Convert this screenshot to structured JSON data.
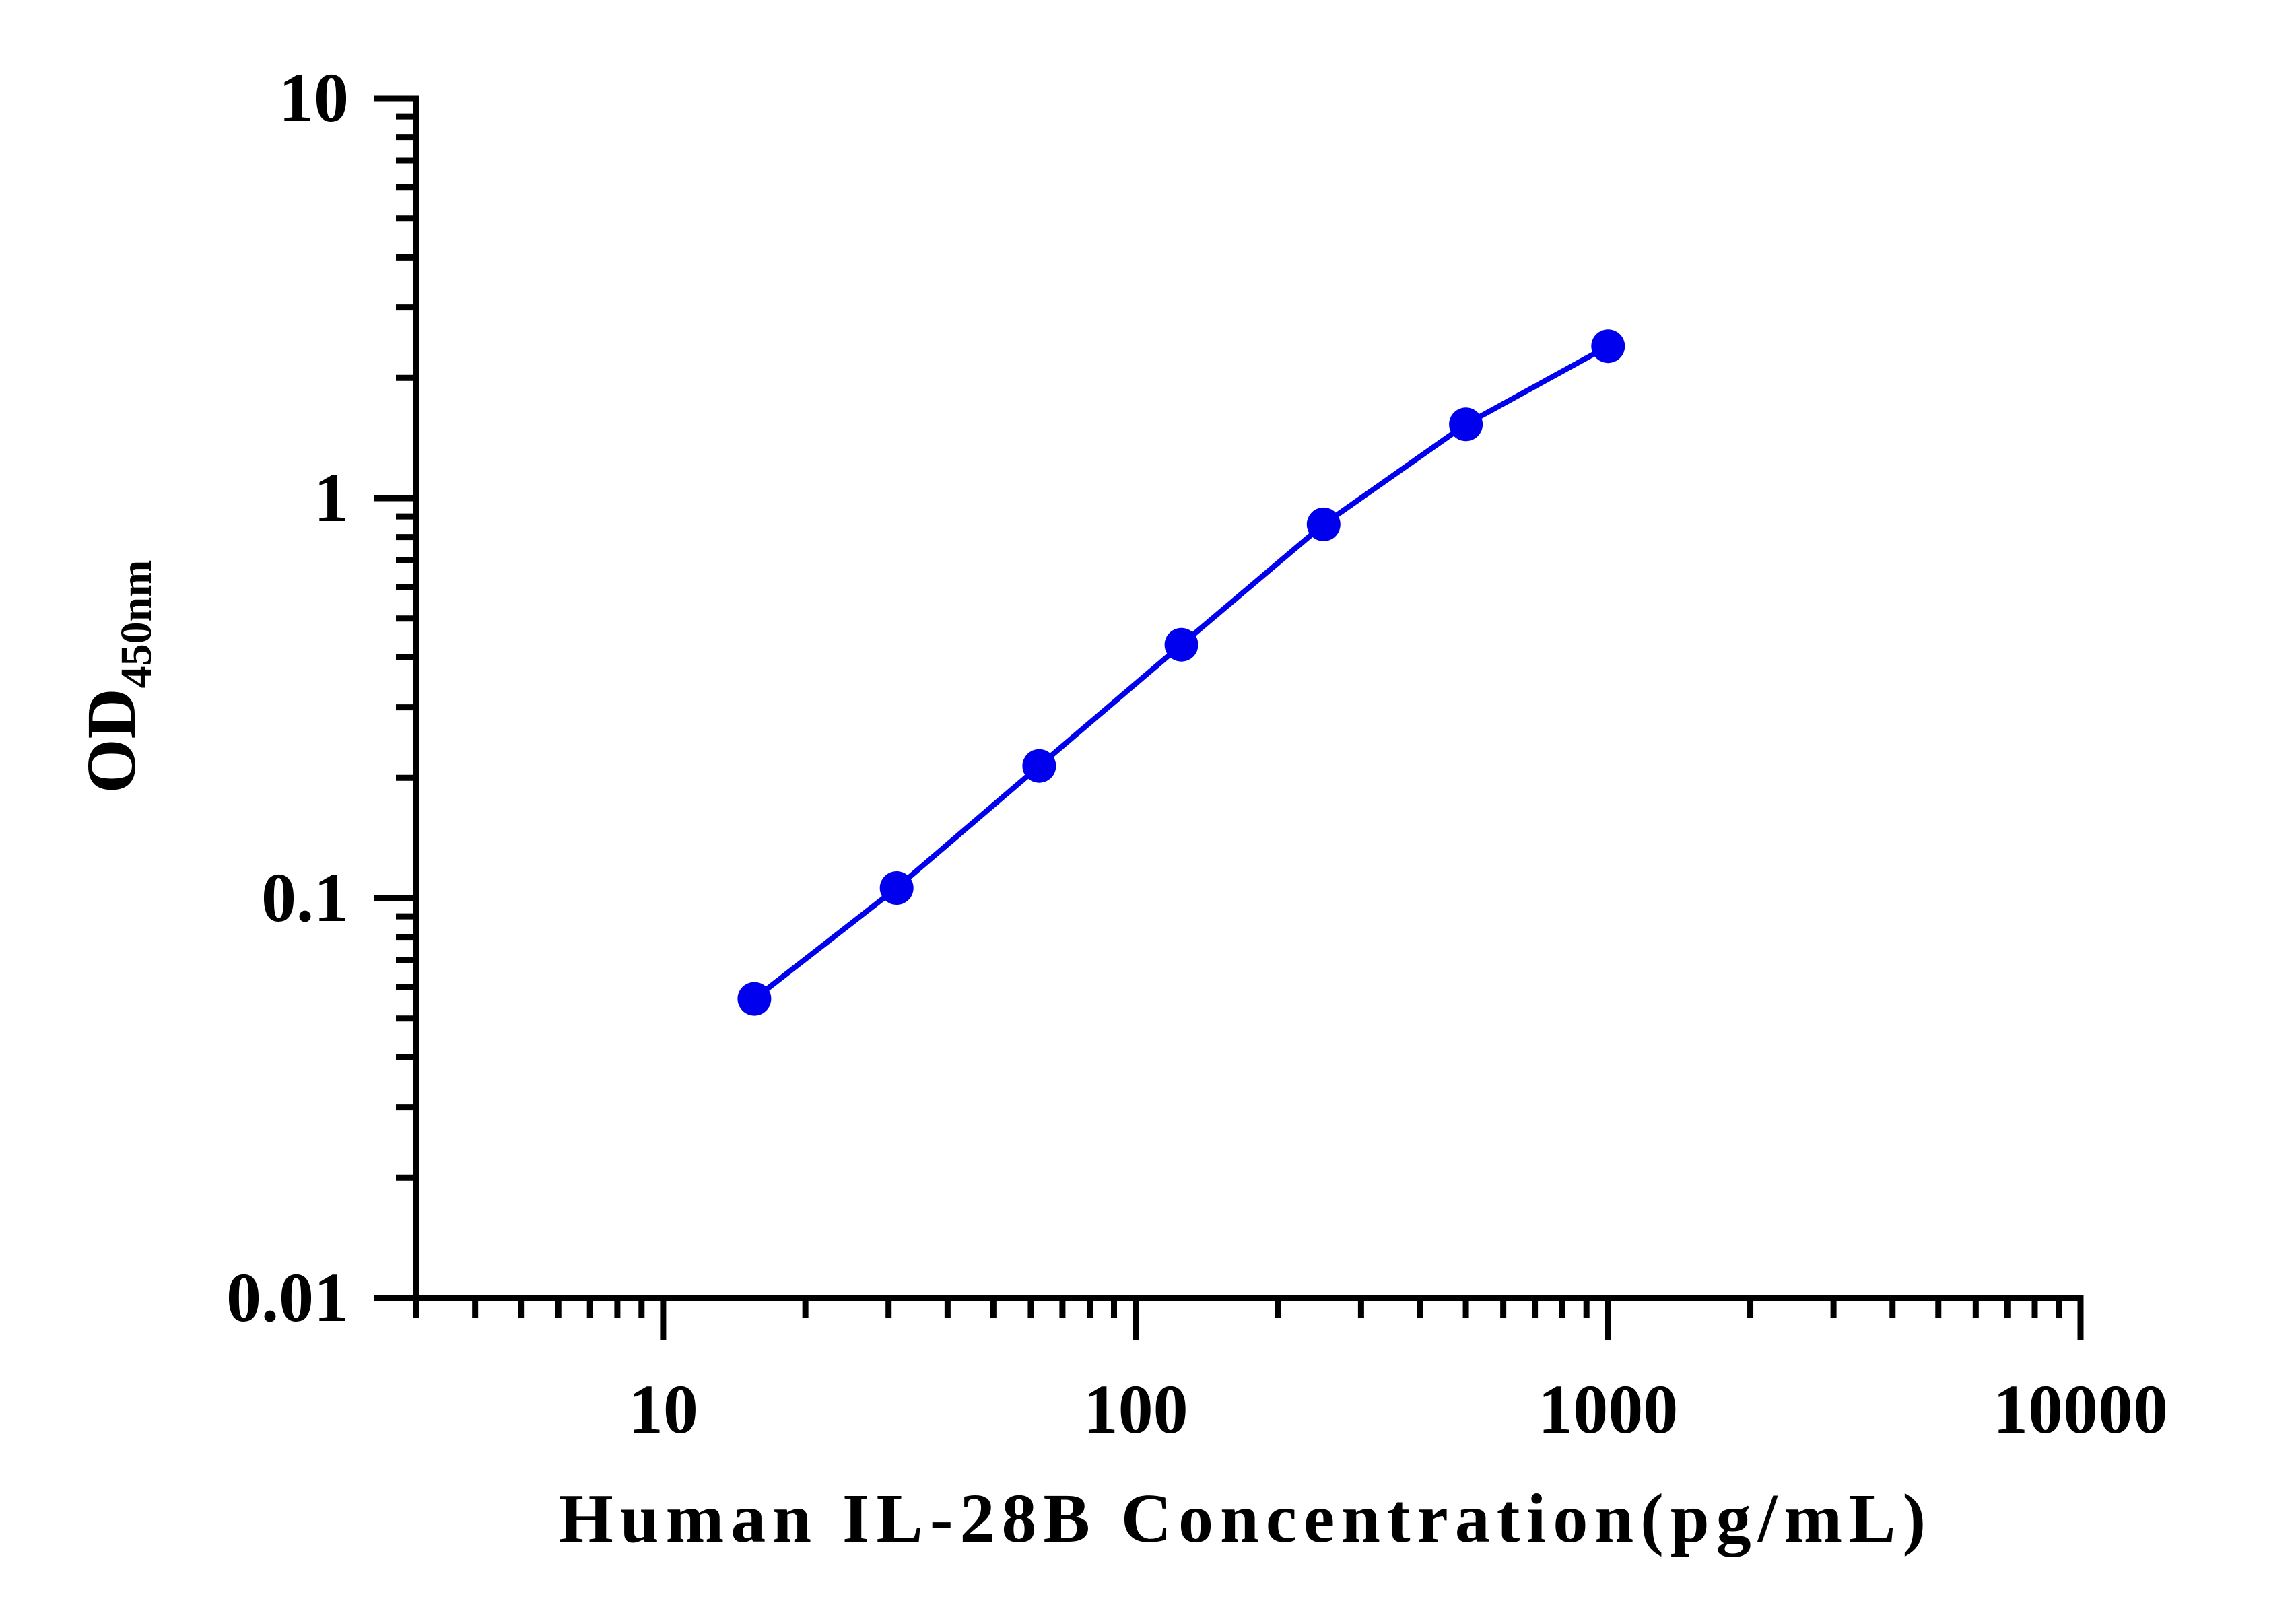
{
  "chart_data": {
    "type": "line",
    "title": "",
    "xlabel": "Human IL-28B Concentration(pg/mL)",
    "ylabel": "OD",
    "ylabel_subscript": "450nm",
    "xscale": "log",
    "yscale": "log",
    "xlim": [
      3,
      10000
    ],
    "ylim": [
      0.01,
      10
    ],
    "x_ticks": [
      "10",
      "100",
      "1000",
      "10000"
    ],
    "y_ticks": [
      "0.01",
      "0.1",
      "1",
      "10"
    ],
    "grid": false,
    "legend": "none",
    "series": [
      {
        "color": "#0000ee",
        "x": [
          15.6,
          31.2,
          62.5,
          125,
          250,
          500,
          1000
        ],
        "y": [
          0.056,
          0.106,
          0.214,
          0.43,
          0.86,
          1.53,
          2.4
        ]
      }
    ]
  }
}
